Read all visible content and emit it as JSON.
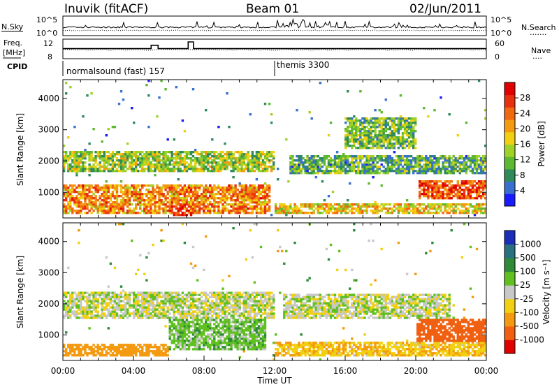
{
  "header": {
    "station": "Inuvik (fitACF)",
    "beam": "Beam 01",
    "date": "02/Jun/2011"
  },
  "nsky": {
    "left_label": "N.Sky",
    "left_ticks": [
      "10^5",
      "10^0"
    ],
    "right_ticks": [
      "10^5",
      "10^0"
    ],
    "right_label": "N.Search",
    "right_legend_line": "......."
  },
  "freq": {
    "left_label_1": "Freq.",
    "left_label_2": "[MHz]",
    "left_ticks": [
      "12",
      "8"
    ],
    "right_ticks": [
      "60",
      "0"
    ],
    "right_label": "Nave",
    "right_legend_line": "...."
  },
  "cpid": {
    "label": "CPID",
    "segments": [
      {
        "text": "normalsound (fast) 157",
        "start_hour": 0
      },
      {
        "text": "themis 3300",
        "start_hour": 12
      }
    ]
  },
  "time_axis": {
    "label": "Time UT",
    "range_hours": [
      0,
      24
    ],
    "tick_labels": [
      "00:00",
      "04:00",
      "08:00",
      "12:00",
      "16:00",
      "20:00",
      "00:00"
    ]
  },
  "range_axis": {
    "label": "Slant Range [km]",
    "range_km": [
      180,
      4600
    ],
    "tick_labels": [
      "1000",
      "2000",
      "3000",
      "4000"
    ]
  },
  "power_scale": {
    "label": "Power [dB]",
    "range": [
      0,
      32
    ],
    "tick_labels": [
      "4",
      "8",
      "12",
      "16",
      "20",
      "24",
      "28"
    ],
    "colors": [
      "#1a1aff",
      "#3a6fd0",
      "#2f8a5a",
      "#5fb832",
      "#9fd228",
      "#f0d010",
      "#f49a10",
      "#f06810",
      "#e83010",
      "#e00000"
    ]
  },
  "velocity_scale": {
    "label": "Velocity [m s⁻¹]",
    "tick_labels": [
      "1000",
      "500",
      "100",
      "25",
      "-25",
      "-100",
      "-500",
      "-1000"
    ],
    "colors": [
      "#1a2eb8",
      "#2b7080",
      "#2f8a3a",
      "#60c020",
      "#c8c8c8",
      "#f0d010",
      "#f49a10",
      "#f06010",
      "#e00000"
    ]
  },
  "chart_data": [
    {
      "type": "line",
      "panel": "nsky",
      "x_range_hours": [
        0,
        24
      ],
      "series": [
        {
          "name": "N.Sky"
        },
        {
          "name": "N.Search"
        }
      ]
    },
    {
      "type": "line",
      "panel": "freq",
      "x_range_hours": [
        0,
        24
      ],
      "freq_mhz": {
        "baseline": 11,
        "steps": [
          {
            "start": 5.0,
            "end": 5.4,
            "value": 12
          },
          {
            "start": 7.1,
            "end": 7.4,
            "value": 13
          }
        ]
      },
      "series": [
        {
          "name": "Freq."
        },
        {
          "name": "Nave"
        }
      ]
    },
    {
      "type": "heatmap",
      "panel": "power",
      "x_range_hours": [
        0,
        24
      ],
      "y_range_km": [
        180,
        4600
      ],
      "value_range_db": [
        0,
        32
      ],
      "bands": [
        {
          "start": 0,
          "end": 11.8,
          "lo": 300,
          "hi": 1250,
          "value_db": 22
        },
        {
          "start": 0,
          "end": 12,
          "lo": 1650,
          "hi": 2300,
          "value_db": 14
        },
        {
          "start": 6.2,
          "end": 7.4,
          "lo": 250,
          "hi": 650,
          "value_db": 30
        },
        {
          "start": 12,
          "end": 24,
          "lo": 300,
          "hi": 650,
          "value_db": 18
        },
        {
          "start": 20.2,
          "end": 24,
          "lo": 800,
          "hi": 1400,
          "value_db": 26
        },
        {
          "start": 12.8,
          "end": 24,
          "lo": 1600,
          "hi": 2200,
          "value_db": 10
        },
        {
          "start": 16,
          "end": 20,
          "lo": 2400,
          "hi": 3400,
          "value_db": 12
        }
      ]
    },
    {
      "type": "heatmap",
      "panel": "velocity",
      "x_range_hours": [
        0,
        24
      ],
      "y_range_km": [
        180,
        4600
      ],
      "bands": [
        {
          "start": 0,
          "end": 6,
          "lo": 300,
          "hi": 700,
          "value_ms": -400
        },
        {
          "start": 0,
          "end": 12,
          "lo": 1500,
          "hi": 2400,
          "value_ms": 0
        },
        {
          "start": 6,
          "end": 11.5,
          "lo": 500,
          "hi": 1500,
          "value_ms": 60
        },
        {
          "start": 12,
          "end": 24,
          "lo": 300,
          "hi": 800,
          "value_ms": -80
        },
        {
          "start": 20,
          "end": 24,
          "lo": 800,
          "hi": 1500,
          "value_ms": -700
        },
        {
          "start": 12.5,
          "end": 22,
          "lo": 1500,
          "hi": 2300,
          "value_ms": 0
        }
      ]
    }
  ]
}
